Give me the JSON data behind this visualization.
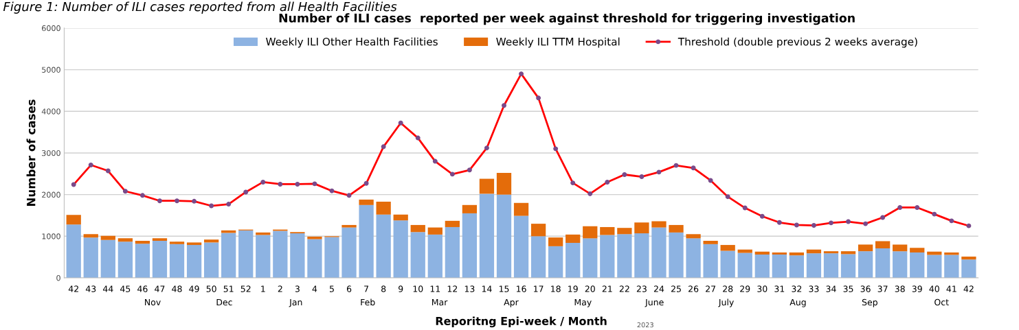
{
  "chart_data": {
    "type": "bar",
    "stacked": true,
    "title": "Number of ILI cases  reported per week against threshold for triggering investigation",
    "xlabel": "Reporitng Epi-week / Month",
    "ylabel": "Number of cases",
    "categories": [
      "42",
      "43",
      "44",
      "45",
      "46",
      "47",
      "48",
      "49",
      "50",
      "51",
      "52",
      "1",
      "2",
      "3",
      "4",
      "5",
      "6",
      "7",
      "8",
      "9",
      "10",
      "11",
      "12",
      "13",
      "14",
      "15",
      "16",
      "17",
      "18",
      "19",
      "20",
      "21",
      "22",
      "23",
      "24",
      "25",
      "26",
      "27",
      "28",
      "29",
      "30",
      "31",
      "32",
      "33",
      "34",
      "35",
      "36",
      "37",
      "38",
      "39",
      "40",
      "41",
      "42"
    ],
    "series": [
      {
        "name": "Weekly ILI Other Health Facilities",
        "color": "#8db3e2",
        "values": [
          1280,
          970,
          910,
          870,
          820,
          890,
          810,
          790,
          850,
          1080,
          1140,
          1030,
          1130,
          1070,
          930,
          980,
          1210,
          1750,
          1520,
          1380,
          1100,
          1040,
          1220,
          1550,
          2020,
          2000,
          1490,
          1000,
          760,
          840,
          950,
          1030,
          1050,
          1070,
          1210,
          1090,
          950,
          810,
          650,
          600,
          560,
          560,
          540,
          590,
          590,
          570,
          640,
          710,
          640,
          610,
          550,
          550,
          440
        ]
      },
      {
        "name": "Weekly ILI TTM Hospital",
        "color": "#e46c0a",
        "values": [
          230,
          80,
          100,
          80,
          70,
          60,
          60,
          60,
          70,
          60,
          20,
          60,
          30,
          30,
          60,
          20,
          60,
          130,
          310,
          140,
          170,
          170,
          150,
          200,
          360,
          520,
          310,
          300,
          210,
          200,
          290,
          190,
          150,
          260,
          150,
          180,
          100,
          80,
          140,
          80,
          70,
          50,
          70,
          90,
          50,
          70,
          160,
          170,
          160,
          110,
          80,
          60,
          70
        ]
      },
      {
        "name": "Threshold (double previous 2 weeks average)",
        "type": "line",
        "color": "#ff0000",
        "marker": "circle",
        "values": [
          2240,
          2710,
          2570,
          2080,
          1980,
          1850,
          1850,
          1840,
          1730,
          1770,
          2060,
          2300,
          2250,
          2250,
          2260,
          2090,
          1980,
          2270,
          3150,
          3720,
          3360,
          2800,
          2490,
          2590,
          3120,
          4140,
          4900,
          4320,
          3100,
          2280,
          2020,
          2300,
          2480,
          2430,
          2540,
          2700,
          2640,
          2340,
          1950,
          1680,
          1480,
          1330,
          1270,
          1260,
          1320,
          1350,
          1300,
          1450,
          1690,
          1690,
          1530,
          1370,
          1250
        ]
      }
    ],
    "ylim": [
      0,
      6000
    ],
    "yticks": [
      0,
      1000,
      2000,
      3000,
      4000,
      5000,
      6000
    ],
    "grid": "y",
    "legend": "top",
    "annotations": [
      "Figure 1: Number of ILI cases reported from all Health Facilities",
      "2023",
      "Nov",
      "Dec",
      "Jan",
      "Feb",
      "Mar",
      "Apr",
      "May",
      "June",
      "July",
      "Aug",
      "Sep",
      "Oct"
    ]
  }
}
